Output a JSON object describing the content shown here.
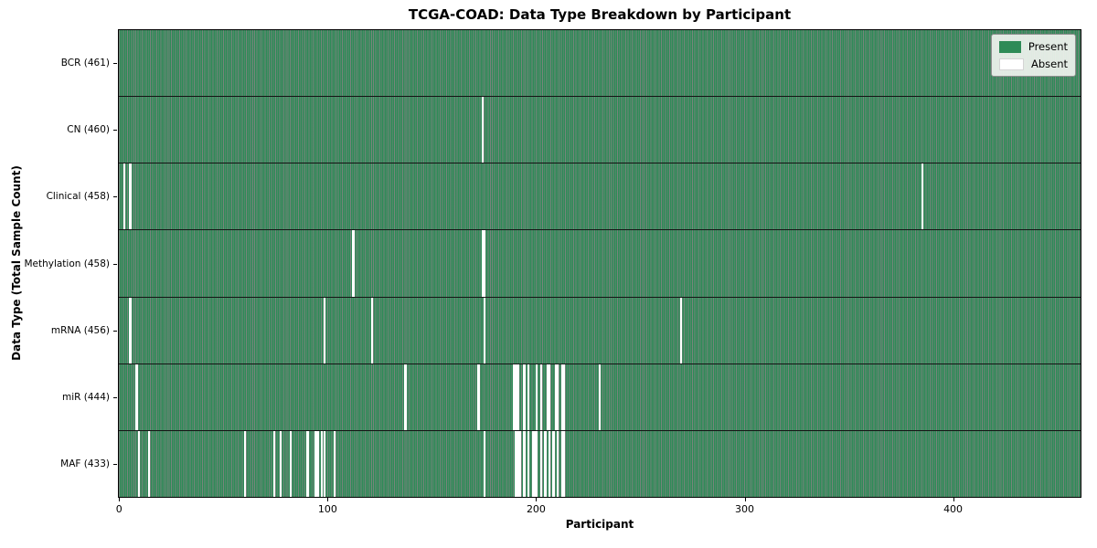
{
  "title": "TCGA-COAD: Data Type Breakdown by Participant",
  "legend": {
    "present_label": "Present",
    "absent_label": "Absent"
  },
  "colors": {
    "present": "#2e8b57",
    "absent": "#ffffff",
    "bar_edge": "rgba(8, 30, 18, 0.55)",
    "row_separator": "#141414",
    "plot_border": "#000000"
  },
  "chart_data": {
    "type": "heatmap",
    "title": "TCGA-COAD: Data Type Breakdown by Participant",
    "xlabel": "Participant",
    "ylabel": "Data Type (Total Sample Count)",
    "legend_entries": [
      "Present",
      "Absent"
    ],
    "legend_position": "upper right",
    "n_participants": 461,
    "x_range": [
      0,
      461
    ],
    "x_ticks": [
      0,
      100,
      200,
      300,
      400
    ],
    "cell_states": [
      "present",
      "absent"
    ],
    "rows": [
      {
        "name": "BCR",
        "label": "BCR (461)",
        "present_count": 461,
        "absent_participants": []
      },
      {
        "name": "CN",
        "label": "CN (460)",
        "present_count": 460,
        "absent_participants": [
          174
        ]
      },
      {
        "name": "Clinical",
        "label": "Clinical (458)",
        "present_count": 458,
        "absent_participants": [
          2,
          5,
          385
        ]
      },
      {
        "name": "Methylation",
        "label": "Methylation (458)",
        "present_count": 458,
        "absent_participants": [
          112,
          174,
          175
        ]
      },
      {
        "name": "mRNA",
        "label": "mRNA (456)",
        "present_count": 456,
        "absent_participants": [
          5,
          98,
          121,
          175,
          269
        ]
      },
      {
        "name": "miR",
        "label": "miR (444)",
        "present_count": 444,
        "absent_participants": [
          8,
          137,
          172,
          189,
          190,
          191,
          194,
          196,
          200,
          202,
          205,
          206,
          209,
          210,
          212,
          213,
          230
        ]
      },
      {
        "name": "MAF",
        "label": "MAF (433)",
        "present_count": 433,
        "absent_participants": [
          9,
          14,
          60,
          74,
          77,
          82,
          90,
          94,
          95,
          97,
          98,
          103,
          175,
          190,
          191,
          192,
          194,
          196,
          198,
          199,
          200,
          202,
          204,
          206,
          208,
          210,
          212,
          213
        ]
      }
    ]
  }
}
